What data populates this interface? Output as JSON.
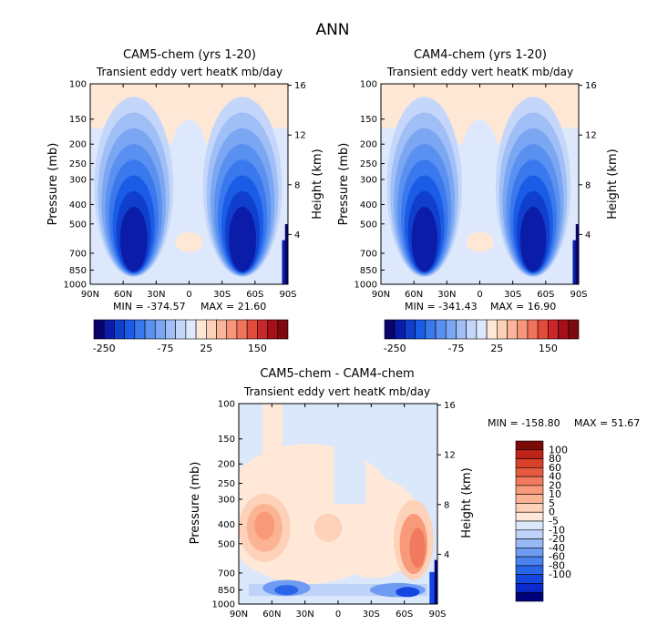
{
  "page_title": "ANN",
  "palettes": {
    "panel": [
      "#08046b",
      "#0a1ca8",
      "#0f3fcc",
      "#1a5ce6",
      "#3a78ee",
      "#5a90f0",
      "#7aa6f2",
      "#9fbff6",
      "#c4d7fa",
      "#dde8fc",
      "#ffe7d6",
      "#fdd0b8",
      "#fbb59a",
      "#f7967a",
      "#f0735c",
      "#e24a3a",
      "#c9272a",
      "#a50f16",
      "#7a0a10"
    ],
    "diff": [
      "#00007a",
      "#0a2ad0",
      "#1446e0",
      "#2a64e8",
      "#4a82f0",
      "#6f9cf2",
      "#98b9f5",
      "#bfd3f8",
      "#dbe7fb",
      "#ffe8d8",
      "#fdd2b8",
      "#fbb394",
      "#f89a7a",
      "#f27a5e",
      "#e85a40",
      "#d8402a",
      "#bf2318",
      "#7a0a08"
    ]
  },
  "chart_data": [
    {
      "type": "heatmap",
      "name": "cam5",
      "title": "CAM5-chem (yrs 1-20)",
      "subtitle": "Transient eddy vert heatK mb/day",
      "xlabel": "",
      "ylabel": "Pressure (mb)",
      "ylabel_right": "Height (km)",
      "x_ticks": [
        "90N",
        "60N",
        "30N",
        "0",
        "30S",
        "60S",
        "90S"
      ],
      "y_ticks": [
        "100",
        "150",
        "200",
        "250",
        "300",
        "400",
        "500",
        "700",
        "850",
        "1000"
      ],
      "y_ticks_right": [
        "16",
        "12",
        "8",
        "4"
      ],
      "min_label": "MIN = -374.57",
      "max_label": "MAX =  21.60",
      "colorbar_labels": [
        "-250",
        "-75",
        "25",
        "150"
      ],
      "colorbar_levels": [
        -300,
        -250,
        -200,
        -175,
        -150,
        -125,
        -100,
        -75,
        -50,
        -25,
        0,
        25,
        50,
        75,
        100,
        125,
        150,
        175,
        200
      ],
      "min": -374.57,
      "max": 21.6
    },
    {
      "type": "heatmap",
      "name": "cam4",
      "title": "CAM4-chem (yrs 1-20)",
      "subtitle": "Transient eddy vert heatK mb/day",
      "xlabel": "",
      "ylabel": "Pressure (mb)",
      "ylabel_right": "Height (km)",
      "x_ticks": [
        "90N",
        "60N",
        "30N",
        "0",
        "30S",
        "60S",
        "90S"
      ],
      "y_ticks": [
        "100",
        "150",
        "200",
        "250",
        "300",
        "400",
        "500",
        "700",
        "850",
        "1000"
      ],
      "y_ticks_right": [
        "16",
        "12",
        "8",
        "4"
      ],
      "min_label": "MIN = -341.43",
      "max_label": "MAX =  16.90",
      "colorbar_labels": [
        "-250",
        "-75",
        "25",
        "150"
      ],
      "colorbar_levels": [
        -300,
        -250,
        -200,
        -175,
        -150,
        -125,
        -100,
        -75,
        -50,
        -25,
        0,
        25,
        50,
        75,
        100,
        125,
        150,
        175,
        200
      ],
      "min": -341.43,
      "max": 16.9
    },
    {
      "type": "heatmap",
      "name": "diff",
      "title": "CAM5-chem - CAM4-chem",
      "subtitle": "Transient eddy vert heatK mb/day",
      "xlabel": "",
      "ylabel": "Pressure (mb)",
      "ylabel_right": "Height (km)",
      "x_ticks": [
        "90N",
        "60N",
        "30N",
        "0",
        "30S",
        "60S",
        "90S"
      ],
      "y_ticks": [
        "100",
        "150",
        "200",
        "250",
        "300",
        "400",
        "500",
        "700",
        "850",
        "1000"
      ],
      "y_ticks_right": [
        "16",
        "12",
        "8",
        "4"
      ],
      "min_label": "MIN = -158.80",
      "max_label": "MAX =  51.67",
      "colorbar_labels": [
        "100",
        "80",
        "60",
        "40",
        "20",
        "10",
        "5",
        "0",
        "-5",
        "-10",
        "-20",
        "-40",
        "-60",
        "-80",
        "-100"
      ],
      "min": -158.8,
      "max": 51.67
    }
  ]
}
